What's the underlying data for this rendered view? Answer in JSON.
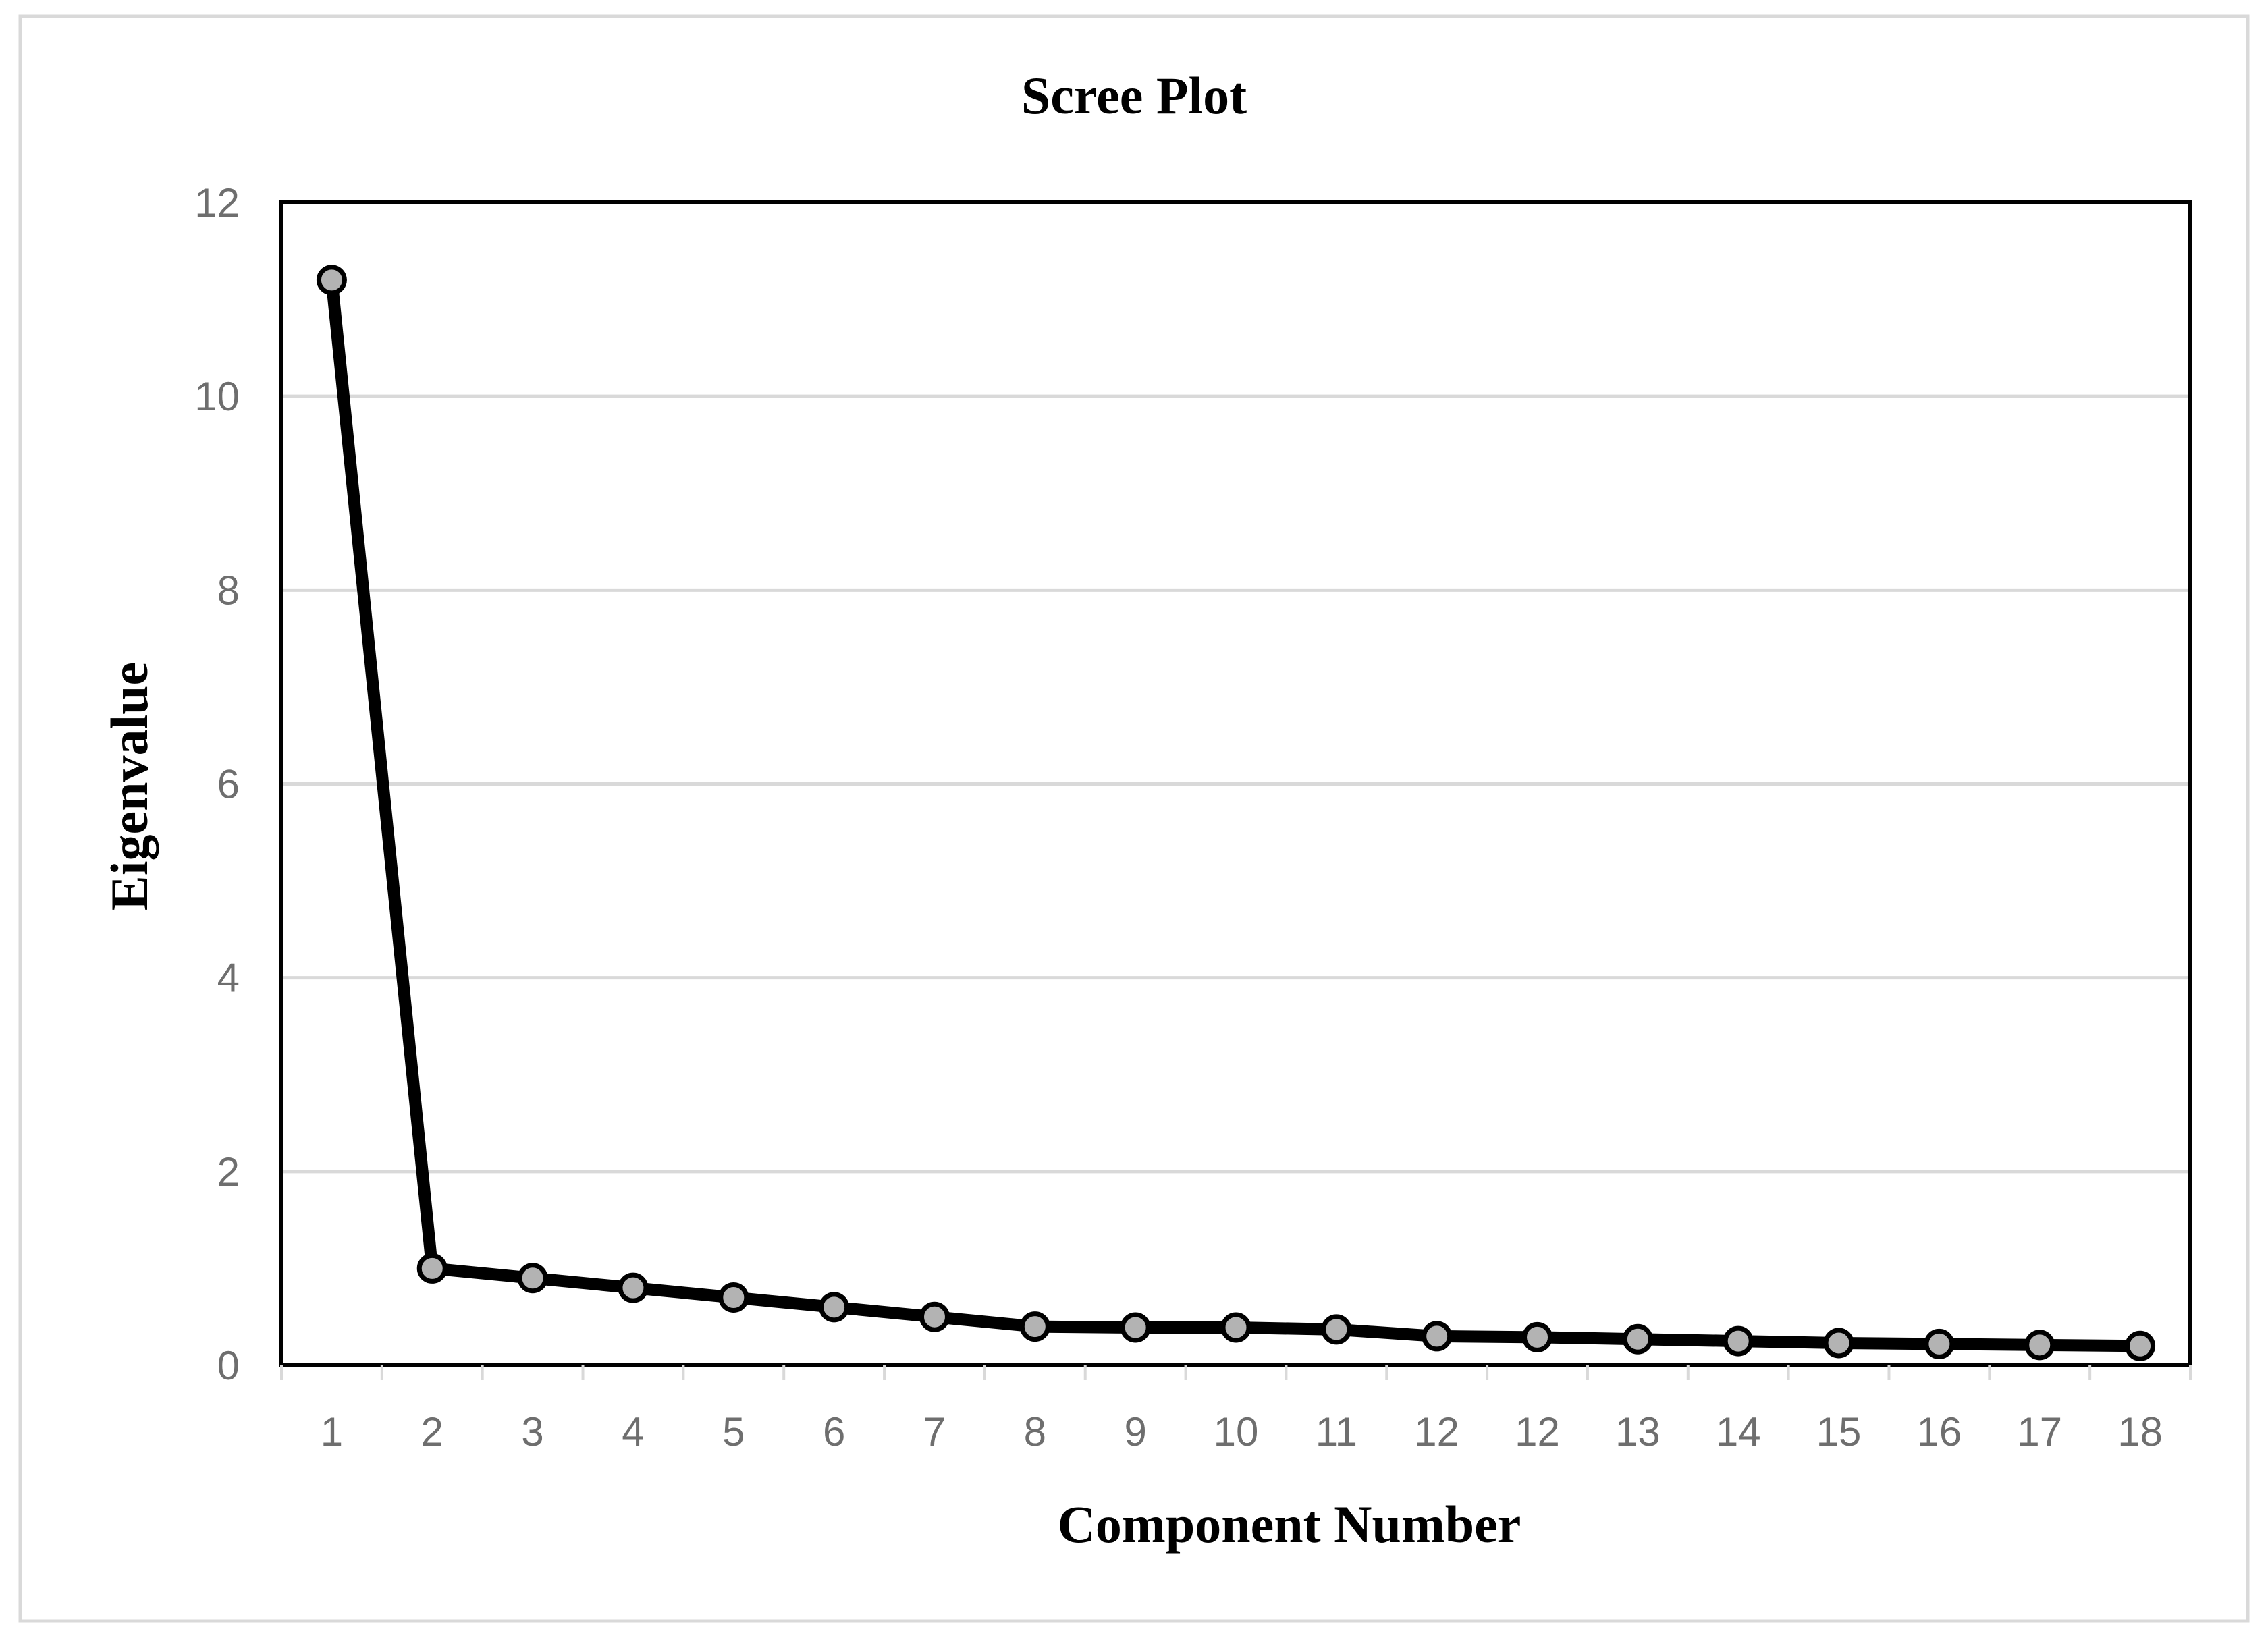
{
  "chart_data": {
    "type": "line",
    "title": "Scree Plot",
    "xlabel": "Component Number",
    "ylabel": "Eigenvalue",
    "categories": [
      "1",
      "2",
      "3",
      "4",
      "5",
      "6",
      "7",
      "8",
      "9",
      "10",
      "11",
      "12",
      "12",
      "13",
      "14",
      "15",
      "16",
      "17",
      "18"
    ],
    "series": [
      {
        "values": [
          11.2,
          1.0,
          0.9,
          0.8,
          0.7,
          0.6,
          0.5,
          0.4,
          0.39,
          0.39,
          0.37,
          0.3,
          0.29,
          0.27,
          0.25,
          0.23,
          0.22,
          0.21,
          0.2
        ]
      }
    ],
    "ylim": [
      0,
      12
    ],
    "yticks": [
      "0",
      "2",
      "4",
      "6",
      "8",
      "10",
      "12"
    ],
    "grid": true,
    "legend": "none",
    "colors": {
      "line": "#000000",
      "marker_fill": "#b3b3b3",
      "marker_stroke": "#000000",
      "grid": "#d9d9d9",
      "tick_text": "#6e6e6e",
      "frame": "#000000",
      "outer_border": "#d9d9d9"
    }
  }
}
